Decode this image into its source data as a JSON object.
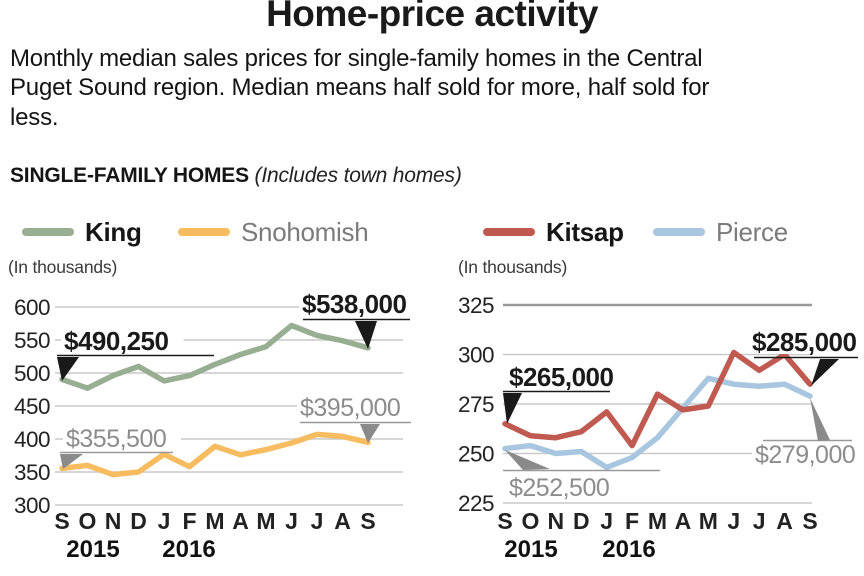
{
  "header": {
    "title": "Home-price activity",
    "intro": "Monthly median sales prices for single-family homes in the Central Puget Sound region. Median means half sold for more, half sold for less.",
    "section_label": "SINGLE-FAMILY HOMES ",
    "section_note": "(Includes town homes)"
  },
  "legend": {
    "items": [
      {
        "label": "King",
        "color": "#98ae93",
        "emphasis": true
      },
      {
        "label": "Snohomish",
        "color": "#f7bb60",
        "emphasis": false
      },
      {
        "label": "Kitsap",
        "color": "#c05a50",
        "emphasis": true
      },
      {
        "label": "Pierce",
        "color": "#a9c6e1",
        "emphasis": false
      }
    ]
  },
  "charts_common": {
    "units_label": "(In thousands)",
    "grid_color": "#c9c9c9",
    "text_color": "#222222",
    "annotation_bold_color": "#1a1a1a",
    "annotation_gray_color": "#8c8c8c"
  },
  "chart_data": [
    {
      "type": "line",
      "region": "King and Snohomish counties",
      "units": "thousands of dollars",
      "categories": [
        "S",
        "O",
        "N",
        "D",
        "J",
        "F",
        "M",
        "A",
        "M",
        "J",
        "J",
        "A",
        "S"
      ],
      "year_labels": [
        "2015",
        "2016"
      ],
      "yticks": [
        600,
        550,
        500,
        450,
        400,
        350,
        300
      ],
      "ylim": [
        300,
        600
      ],
      "grid": true,
      "series": [
        {
          "name": "King",
          "color": "#98ae93",
          "values": [
            490.25,
            477,
            496,
            510,
            488,
            496,
            513,
            528,
            540,
            572,
            557,
            549,
            538
          ]
        },
        {
          "name": "Snohomish",
          "color": "#f7bb60",
          "values": [
            355.5,
            360,
            346,
            350,
            377,
            358,
            389,
            376,
            384,
            394,
            407,
            404,
            395
          ]
        }
      ],
      "annotations": [
        {
          "text": "$490,250",
          "series": "King",
          "point": "first",
          "style": "bold"
        },
        {
          "text": "$538,000",
          "series": "King",
          "point": "last",
          "style": "bold"
        },
        {
          "text": "$355,500",
          "series": "Snohomish",
          "point": "first",
          "style": "gray"
        },
        {
          "text": "$395,000",
          "series": "Snohomish",
          "point": "last",
          "style": "gray"
        }
      ]
    },
    {
      "type": "line",
      "region": "Kitsap and Pierce counties",
      "units": "thousands of dollars",
      "categories": [
        "S",
        "O",
        "N",
        "D",
        "J",
        "F",
        "M",
        "A",
        "M",
        "J",
        "J",
        "A",
        "S"
      ],
      "year_labels": [
        "2015",
        "2016"
      ],
      "yticks": [
        325,
        300,
        275,
        250,
        225
      ],
      "ylim": [
        225,
        325
      ],
      "grid": true,
      "series": [
        {
          "name": "Kitsap",
          "color": "#c05a50",
          "values": [
            265,
            259,
            258,
            261,
            271,
            254,
            280,
            272,
            274,
            301,
            292,
            300,
            285
          ]
        },
        {
          "name": "Pierce",
          "color": "#a9c6e1",
          "values": [
            252.5,
            254,
            250,
            251,
            243,
            248,
            258,
            273,
            288,
            285,
            284,
            285,
            279
          ]
        }
      ],
      "annotations": [
        {
          "text": "$265,000",
          "series": "Kitsap",
          "point": "first",
          "style": "bold"
        },
        {
          "text": "$285,000",
          "series": "Kitsap",
          "point": "last",
          "style": "bold"
        },
        {
          "text": "$252,500",
          "series": "Pierce",
          "point": "first",
          "style": "gray"
        },
        {
          "text": "$279,000",
          "series": "Pierce",
          "point": "last",
          "style": "gray"
        }
      ]
    }
  ]
}
